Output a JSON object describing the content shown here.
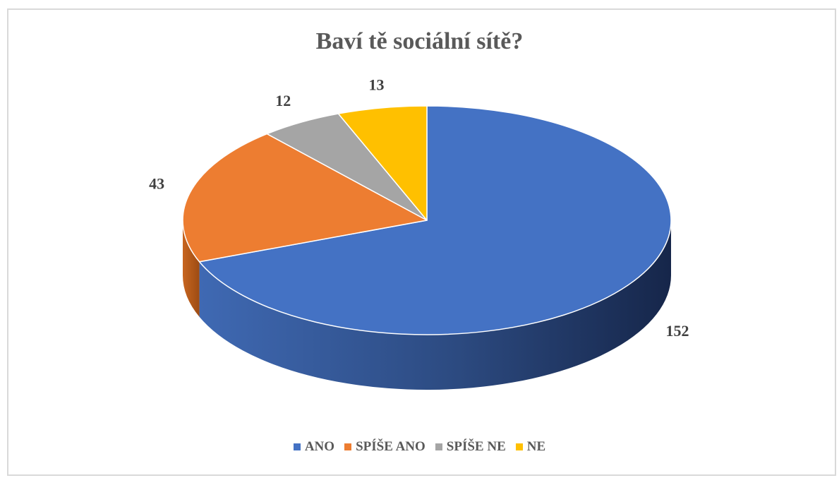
{
  "chart_data": {
    "type": "pie",
    "title": "Baví tě sociální sítě?",
    "categories": [
      "ANO",
      "SPÍŠE ANO",
      "SPÍŠE NE",
      "NE"
    ],
    "values": [
      152,
      43,
      12,
      13
    ],
    "data_labels": [
      "152",
      "43",
      "12",
      "13"
    ],
    "colors": [
      "#4472c4",
      "#ed7d31",
      "#a5a5a5",
      "#ffc000"
    ],
    "legend_position": "bottom",
    "style": "3d"
  }
}
